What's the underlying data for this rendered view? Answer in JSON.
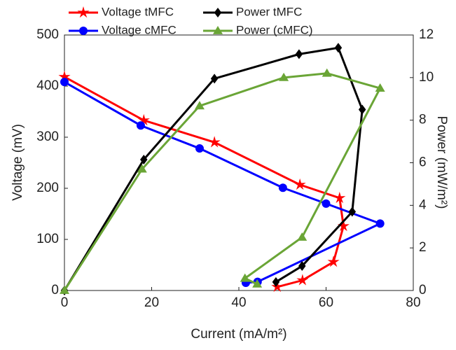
{
  "chart_data": {
    "type": "line",
    "xlabel": "Current (mA/m²)",
    "ylabel": "Voltage (mV)",
    "y2label": "Power (mW/m²)",
    "xlim": [
      0,
      80
    ],
    "xticks": [
      0,
      20,
      40,
      60,
      80
    ],
    "ylim": [
      0,
      500
    ],
    "yticks": [
      0,
      100,
      200,
      300,
      400,
      500
    ],
    "y2lim": [
      0,
      12
    ],
    "y2ticks": [
      0,
      2,
      4,
      6,
      8,
      10,
      12
    ],
    "grid": false,
    "legend": "top",
    "series": [
      {
        "name": "Voltage tMFC",
        "color": "#ff0000",
        "marker": "star",
        "axis": "y",
        "x": [
          0,
          18.2,
          34.4,
          54,
          63.1,
          64,
          61.7,
          54.6,
          48.8
        ],
        "values": [
          418,
          333,
          290,
          207,
          181,
          126,
          56,
          20,
          7
        ]
      },
      {
        "name": "Voltage cMFC",
        "color": "#0000ff",
        "marker": "circle",
        "axis": "y",
        "x": [
          0,
          17.5,
          31,
          50.1,
          60,
          72.4,
          44.3,
          41.6
        ],
        "values": [
          408,
          323,
          278,
          201,
          170,
          131,
          17,
          15
        ]
      },
      {
        "name": "Power tMFC",
        "color": "#000000",
        "marker": "diamond",
        "axis": "y2",
        "x": [
          0,
          18.2,
          34.4,
          53.8,
          62.8,
          68.3,
          66,
          54.5,
          48.5
        ],
        "values": [
          0,
          6.15,
          9.95,
          11.1,
          11.4,
          8.5,
          3.7,
          1.15,
          0.4
        ]
      },
      {
        "name": "Power (cMFC)",
        "color": "#6aa536",
        "marker": "triangle",
        "axis": "y2",
        "x": [
          0,
          17.8,
          31,
          50.3,
          60.2,
          72.4,
          54.5,
          41.4,
          44.2
        ],
        "values": [
          0,
          5.7,
          8.67,
          10,
          10.2,
          9.5,
          2.5,
          0.57,
          0.3
        ]
      }
    ]
  }
}
